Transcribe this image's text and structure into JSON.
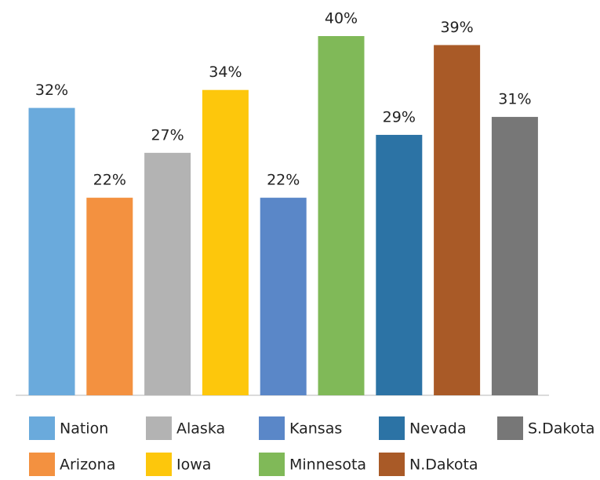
{
  "chart_data": {
    "type": "bar",
    "categories": [
      "Nation",
      "Arizona",
      "Alaska",
      "Iowa",
      "Kansas",
      "Minnesota",
      "Nevada",
      "N.Dakota",
      "S.Dakota"
    ],
    "values": [
      32,
      22,
      27,
      34,
      22,
      40,
      29,
      39,
      31
    ],
    "value_labels": [
      "32%",
      "22%",
      "27%",
      "34%",
      "22%",
      "40%",
      "29%",
      "39%",
      "31%"
    ],
    "colors": [
      "#6aaadc",
      "#f39140",
      "#b3b3b3",
      "#fdc70c",
      "#5a87c8",
      "#80b958",
      "#2c73a5",
      "#a95a27",
      "#777777"
    ]
  }
}
